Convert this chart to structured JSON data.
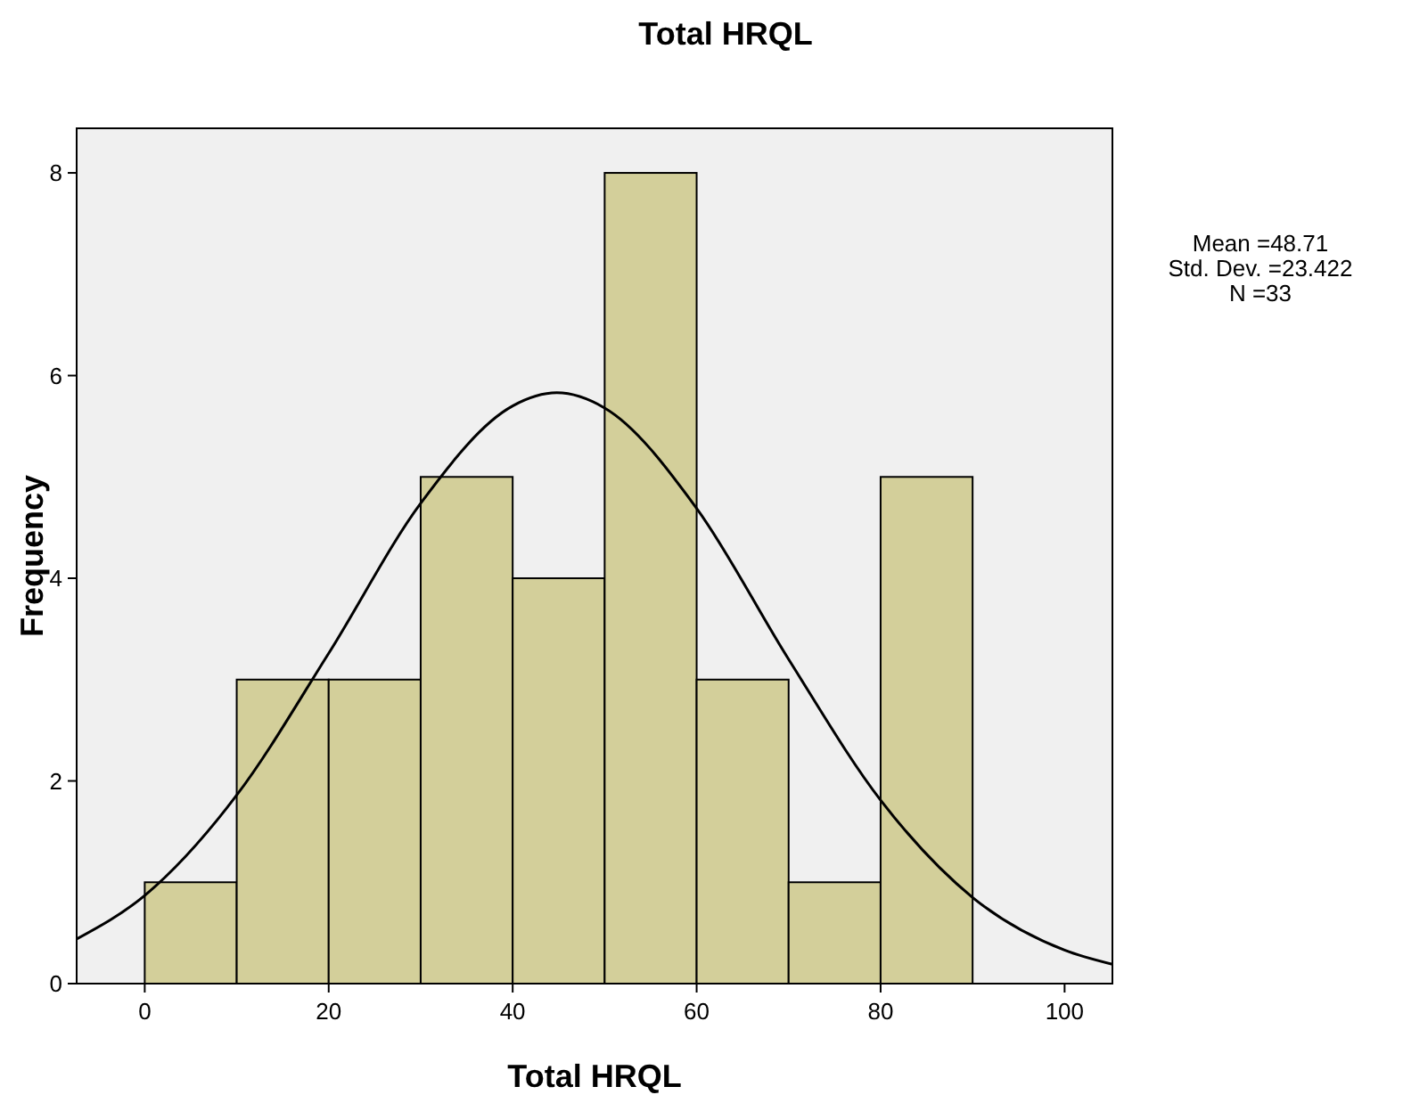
{
  "chart_data": {
    "type": "histogram",
    "title": "Total HRQL",
    "xlabel": "Total HRQL",
    "ylabel": "Frequency",
    "bins": [
      0,
      10,
      20,
      30,
      40,
      50,
      60,
      70,
      80,
      90
    ],
    "values": [
      1,
      3,
      3,
      5,
      4,
      8,
      3,
      1,
      5
    ],
    "color": "#d3cf9a",
    "series": [
      {
        "type": "line",
        "color": "#000000",
        "x": [
          -7.4,
          0,
          10,
          20,
          30,
          40,
          44.8,
          50,
          60,
          70,
          80,
          90,
          100,
          105.2
        ],
        "values": [
          0.44,
          0.87,
          1.86,
          3.26,
          4.74,
          5.7,
          5.83,
          5.68,
          4.69,
          3.2,
          1.81,
          0.85,
          0.33,
          0.19
        ]
      }
    ],
    "xlim": [
      -7.4,
      105.2
    ],
    "ylim": [
      0,
      8.44
    ],
    "xticks": [
      0,
      20,
      40,
      60,
      80,
      100
    ],
    "yticks": [
      0,
      2,
      4,
      6,
      8
    ],
    "annotations": [
      "Mean =48.71",
      "Std. Dev. =23.422",
      "N =33"
    ],
    "grid": false
  }
}
